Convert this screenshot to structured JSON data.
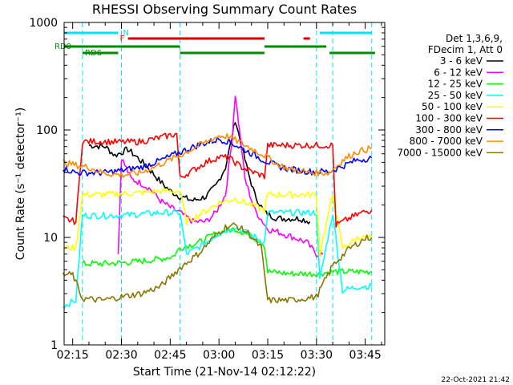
{
  "chart_data": {
    "type": "line",
    "title": "RHESSI Observing Summary Count Rates",
    "xlabel": "Start Time (21-Nov-14 02:12:22)",
    "ylabel": "Count Rate (s⁻¹ detector⁻¹)",
    "yscale": "log",
    "ylim": [
      1,
      1000
    ],
    "xlim": [
      "02:12:22",
      "03:51:00"
    ],
    "x_ticks": [
      "02:15",
      "02:30",
      "02:45",
      "03:00",
      "03:15",
      "03:30",
      "03:45"
    ],
    "y_ticks": [
      "1",
      "10",
      "100",
      "1000"
    ],
    "footer": "22-Oct-2021 21:42",
    "legend": {
      "position": "right",
      "header": [
        "Det 1,3,6,9,",
        "FDecim 1, Att 0"
      ]
    },
    "flags": [
      {
        "name": "N",
        "color": "#00e5ee",
        "segments": [
          [
            "02:12",
            "02:29"
          ],
          [
            "03:31",
            "03:47"
          ]
        ]
      },
      {
        "name": "F",
        "color": "#e00000",
        "segments": [
          [
            "02:32",
            "03:14"
          ],
          [
            "03:26",
            "03:28"
          ]
        ]
      },
      {
        "name": "RD0",
        "color": "#008b00",
        "segments": [
          [
            "02:12",
            "02:48"
          ],
          [
            "03:14",
            "03:33"
          ]
        ]
      },
      {
        "name": "RD6",
        "color": "#008b00",
        "segments": [
          [
            "02:18",
            "02:29"
          ],
          [
            "02:48",
            "03:14"
          ],
          [
            "03:34",
            "03:48"
          ]
        ]
      }
    ],
    "vlines": [
      "02:18",
      "02:30",
      "02:48",
      "03:30",
      "03:35",
      "03:47"
    ],
    "series": [
      {
        "name": "3 - 6 keV",
        "color": "#000000",
        "points": [
          [
            "02:20",
            72
          ],
          [
            "02:25",
            70
          ],
          [
            "02:28",
            58
          ],
          [
            "02:32",
            66
          ],
          [
            "02:35",
            55
          ],
          [
            "02:38",
            45
          ],
          [
            "02:42",
            33
          ],
          [
            "02:45",
            27
          ],
          [
            "02:48",
            24
          ],
          [
            "02:52",
            22
          ],
          [
            "02:56",
            24
          ],
          [
            "02:59",
            30
          ],
          [
            "03:02",
            45
          ],
          [
            "03:04",
            85
          ],
          [
            "03:05",
            125
          ],
          [
            "03:07",
            70
          ],
          [
            "03:09",
            40
          ],
          [
            "03:11",
            25
          ],
          [
            "03:14",
            17
          ],
          [
            "03:18",
            15
          ],
          [
            "03:22",
            15
          ],
          [
            "03:25",
            15
          ],
          [
            "03:28",
            14
          ]
        ]
      },
      {
        "name": "6 - 12 keV",
        "color": "#ff00ff",
        "points": [
          [
            "02:29",
            7
          ],
          [
            "02:30",
            55
          ],
          [
            "02:33",
            35
          ],
          [
            "02:36",
            32
          ],
          [
            "02:39",
            28
          ],
          [
            "02:42",
            22
          ],
          [
            "02:45",
            19
          ],
          [
            "02:48",
            17
          ],
          [
            "02:52",
            14
          ],
          [
            "02:56",
            14
          ],
          [
            "02:59",
            17
          ],
          [
            "03:02",
            25
          ],
          [
            "03:04",
            80
          ],
          [
            "03:05",
            215
          ],
          [
            "03:06",
            120
          ],
          [
            "03:08",
            35
          ],
          [
            "03:11",
            18
          ],
          [
            "03:15",
            12
          ],
          [
            "03:19",
            11
          ],
          [
            "03:23",
            10
          ],
          [
            "03:27",
            9
          ],
          [
            "03:30",
            7
          ],
          [
            "03:32",
            7
          ]
        ]
      },
      {
        "name": "12 - 25 keV",
        "color": "#00ff00",
        "points": [
          [
            "02:18",
            5.7
          ],
          [
            "02:24",
            5.7
          ],
          [
            "02:30",
            5.8
          ],
          [
            "02:36",
            6
          ],
          [
            "02:42",
            6.3
          ],
          [
            "02:46",
            6.7
          ],
          [
            "02:48",
            8
          ],
          [
            "02:54",
            9
          ],
          [
            "02:58",
            10.5
          ],
          [
            "03:02",
            11.5
          ],
          [
            "03:05",
            12
          ],
          [
            "03:08",
            11
          ],
          [
            "03:12",
            9.5
          ],
          [
            "03:14",
            8.5
          ],
          [
            "03:15",
            4.8
          ],
          [
            "03:22",
            4.6
          ],
          [
            "03:30",
            4.6
          ],
          [
            "03:35",
            4.8
          ],
          [
            "03:41",
            4.8
          ],
          [
            "03:47",
            4.8
          ]
        ]
      },
      {
        "name": "25 - 50 keV",
        "color": "#00ffff",
        "points": [
          [
            "02:12",
            2.3
          ],
          [
            "02:16",
            2.6
          ],
          [
            "02:18",
            16
          ],
          [
            "02:24",
            16
          ],
          [
            "02:30",
            16
          ],
          [
            "02:36",
            16.5
          ],
          [
            "02:42",
            17
          ],
          [
            "02:48",
            17
          ],
          [
            "02:50",
            7
          ],
          [
            "02:55",
            8.5
          ],
          [
            "03:00",
            11
          ],
          [
            "03:05",
            12.5
          ],
          [
            "03:10",
            10.5
          ],
          [
            "03:14",
            9
          ],
          [
            "03:15",
            17
          ],
          [
            "03:22",
            17
          ],
          [
            "03:30",
            17
          ],
          [
            "03:31",
            4
          ],
          [
            "03:35",
            17
          ],
          [
            "03:38",
            3.2
          ],
          [
            "03:43",
            3.5
          ],
          [
            "03:47",
            3.5
          ]
        ]
      },
      {
        "name": "50 - 100 keV",
        "color": "#ffff00",
        "points": [
          [
            "02:12",
            8
          ],
          [
            "02:16",
            8
          ],
          [
            "02:18",
            25
          ],
          [
            "02:24",
            25
          ],
          [
            "02:30",
            25.5
          ],
          [
            "02:36",
            26
          ],
          [
            "02:42",
            27
          ],
          [
            "02:48",
            27
          ],
          [
            "02:50",
            14
          ],
          [
            "02:55",
            17
          ],
          [
            "03:00",
            21
          ],
          [
            "03:05",
            23
          ],
          [
            "03:10",
            20
          ],
          [
            "03:14",
            18
          ],
          [
            "03:15",
            25
          ],
          [
            "03:22",
            25
          ],
          [
            "03:30",
            25
          ],
          [
            "03:31",
            7
          ],
          [
            "03:35",
            25
          ],
          [
            "03:38",
            8
          ],
          [
            "03:43",
            10
          ],
          [
            "03:47",
            10
          ]
        ]
      },
      {
        "name": "100 - 300 keV",
        "color": "#ff0000",
        "points": [
          [
            "02:12",
            15
          ],
          [
            "02:16",
            14
          ],
          [
            "02:18",
            78
          ],
          [
            "02:24",
            78
          ],
          [
            "02:30",
            77
          ],
          [
            "02:36",
            78
          ],
          [
            "02:42",
            85
          ],
          [
            "02:47",
            92
          ],
          [
            "02:48",
            36
          ],
          [
            "02:52",
            42
          ],
          [
            "02:56",
            50
          ],
          [
            "03:00",
            56
          ],
          [
            "03:03",
            55
          ],
          [
            "03:07",
            45
          ],
          [
            "03:11",
            40
          ],
          [
            "03:14",
            37
          ],
          [
            "03:15",
            72
          ],
          [
            "03:22",
            72
          ],
          [
            "03:30",
            72
          ],
          [
            "03:35",
            72
          ],
          [
            "03:36",
            13
          ],
          [
            "03:40",
            15
          ],
          [
            "03:44",
            17
          ],
          [
            "03:47",
            18
          ]
        ]
      },
      {
        "name": "300 - 800 keV",
        "color": "#0000ff",
        "points": [
          [
            "02:12",
            44
          ],
          [
            "02:16",
            40
          ],
          [
            "02:20",
            40
          ],
          [
            "02:25",
            40
          ],
          [
            "02:30",
            42
          ],
          [
            "02:36",
            45
          ],
          [
            "02:42",
            52
          ],
          [
            "02:48",
            62
          ],
          [
            "02:54",
            73
          ],
          [
            "03:00",
            82
          ],
          [
            "03:03",
            78
          ],
          [
            "03:08",
            65
          ],
          [
            "03:14",
            52
          ],
          [
            "03:18",
            46
          ],
          [
            "03:22",
            43
          ],
          [
            "03:28",
            41
          ],
          [
            "03:34",
            41
          ],
          [
            "03:38",
            46
          ],
          [
            "03:42",
            52
          ],
          [
            "03:47",
            55
          ]
        ]
      },
      {
        "name": "800 - 7000 keV",
        "color": "#ff8c00",
        "points": [
          [
            "02:12",
            50
          ],
          [
            "02:16",
            47
          ],
          [
            "02:20",
            45
          ],
          [
            "02:24",
            40
          ],
          [
            "02:30",
            38
          ],
          [
            "02:36",
            40
          ],
          [
            "02:42",
            48
          ],
          [
            "02:48",
            58
          ],
          [
            "02:54",
            72
          ],
          [
            "03:00",
            88
          ],
          [
            "03:03",
            87
          ],
          [
            "03:08",
            72
          ],
          [
            "03:14",
            58
          ],
          [
            "03:18",
            48
          ],
          [
            "03:22",
            43
          ],
          [
            "03:28",
            40
          ],
          [
            "03:34",
            40
          ],
          [
            "03:38",
            52
          ],
          [
            "03:42",
            62
          ],
          [
            "03:47",
            68
          ]
        ]
      },
      {
        "name": "7000 - 15000 keV",
        "color": "#8b7500",
        "points": [
          [
            "02:12",
            4.5
          ],
          [
            "02:15",
            4.5
          ],
          [
            "02:18",
            2.7
          ],
          [
            "02:24",
            2.6
          ],
          [
            "02:30",
            2.8
          ],
          [
            "02:36",
            3
          ],
          [
            "02:42",
            3.5
          ],
          [
            "02:48",
            5.2
          ],
          [
            "02:54",
            7.2
          ],
          [
            "02:59",
            10.5
          ],
          [
            "03:02",
            12.5
          ],
          [
            "03:05",
            13
          ],
          [
            "03:09",
            11
          ],
          [
            "03:13",
            8
          ],
          [
            "03:15",
            2.6
          ],
          [
            "03:22",
            2.6
          ],
          [
            "03:30",
            2.8
          ],
          [
            "03:35",
            5.5
          ],
          [
            "03:40",
            7.8
          ],
          [
            "03:45",
            9.8
          ],
          [
            "03:47",
            10
          ]
        ]
      }
    ]
  }
}
